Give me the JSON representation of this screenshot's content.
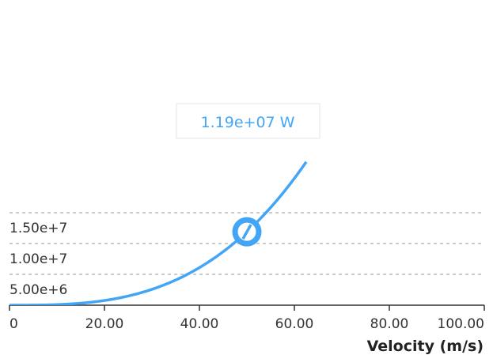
{
  "chart_data": {
    "type": "line",
    "xlabel": "Velocity (m/s)",
    "ylabel": "",
    "xlim": [
      0,
      100
    ],
    "ylim": [
      0,
      20000000
    ],
    "x_ticks": [
      0,
      20,
      40,
      60,
      80,
      100
    ],
    "x_tick_labels": [
      "0",
      "20.00",
      "40.00",
      "60.00",
      "80.00",
      "100.00"
    ],
    "y_ticks": [
      5000000,
      10000000,
      15000000
    ],
    "y_tick_labels": [
      "5.00e+6",
      "1.00e+7",
      "1.50e+7"
    ],
    "grid": "horizontal dashed",
    "series": [
      {
        "color": "#42a5f5",
        "x": [
          0,
          5,
          10,
          15,
          20,
          25,
          30,
          35,
          40,
          45,
          50,
          55,
          60,
          62.5
        ],
        "y": [
          0,
          12500,
          100000,
          337500,
          800000,
          1562500,
          2700000,
          4287500,
          6400000,
          9112500,
          11900000,
          16637500,
          21600000,
          24400000
        ]
      }
    ],
    "highlight": {
      "x": 50,
      "y": 11900000,
      "label": "1.19e+07 W"
    }
  },
  "colors": {
    "line": "#42a5f5",
    "grid": "#bbbbbb",
    "axis": "#333333"
  }
}
